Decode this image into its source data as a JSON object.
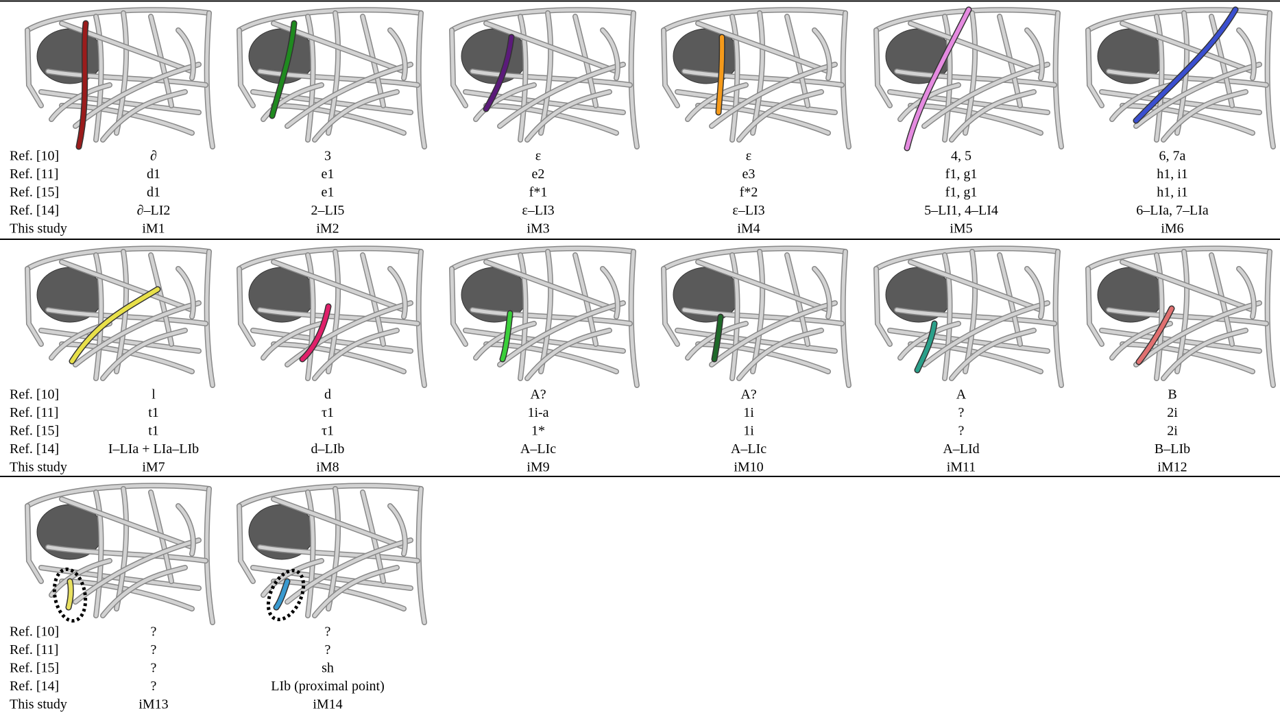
{
  "row_labels": [
    "Ref. [10]",
    "Ref. [11]",
    "Ref. [15]",
    "Ref. [14]",
    "This study"
  ],
  "panels": [
    {
      "color": "#9b1c1c",
      "labels": [
        "∂",
        "d1",
        "d1",
        "∂–LI2",
        "iM1"
      ]
    },
    {
      "color": "#1f8a1f",
      "labels": [
        "3",
        "e1",
        "e1",
        "2–LI5",
        "iM2"
      ]
    },
    {
      "color": "#5b1a7a",
      "labels": [
        "ε",
        "e2",
        "f*1",
        "ε–LI3",
        "iM3"
      ]
    },
    {
      "color": "#f59a1a",
      "labels": [
        "ε",
        "e3",
        "f*2",
        "ε–LI3",
        "iM4"
      ]
    },
    {
      "color": "#e58ae0",
      "labels": [
        "4, 5",
        "f1, g1",
        "f1, g1",
        "5–LI1, 4–LI4",
        "iM5"
      ]
    },
    {
      "color": "#3a4fd0",
      "labels": [
        "6, 7a",
        "h1, i1",
        "h1, i1",
        "6–LIa, 7–LIa",
        "iM6"
      ]
    },
    {
      "color": "#e8e04a",
      "labels": [
        "l",
        "t1",
        "t1",
        "I–LIa + LIa–LIb",
        "iM7"
      ]
    },
    {
      "color": "#e0206a",
      "labels": [
        "d",
        "τ1",
        "τ1",
        "d–LIb",
        "iM8"
      ]
    },
    {
      "color": "#3ad03a",
      "labels": [
        "A?",
        "1i-a",
        "1*",
        "A–LIc",
        "iM9"
      ]
    },
    {
      "color": "#1f6a2a",
      "labels": [
        "A?",
        "1i",
        "1i",
        "A–LIc",
        "iM10"
      ]
    },
    {
      "color": "#2aa08a",
      "labels": [
        "A",
        "?",
        "?",
        "A–LId",
        "iM11"
      ]
    },
    {
      "color": "#e07070",
      "labels": [
        "B",
        "2i",
        "2i",
        "B–LIb",
        "iM12"
      ]
    },
    {
      "color": "#e8e060",
      "labels": [
        "?",
        "?",
        "?",
        "?",
        "iM13"
      ]
    },
    {
      "color": "#3a9ad0",
      "labels": [
        "?",
        "?",
        "sh",
        "LIb (proximal point)",
        "iM14"
      ]
    }
  ]
}
